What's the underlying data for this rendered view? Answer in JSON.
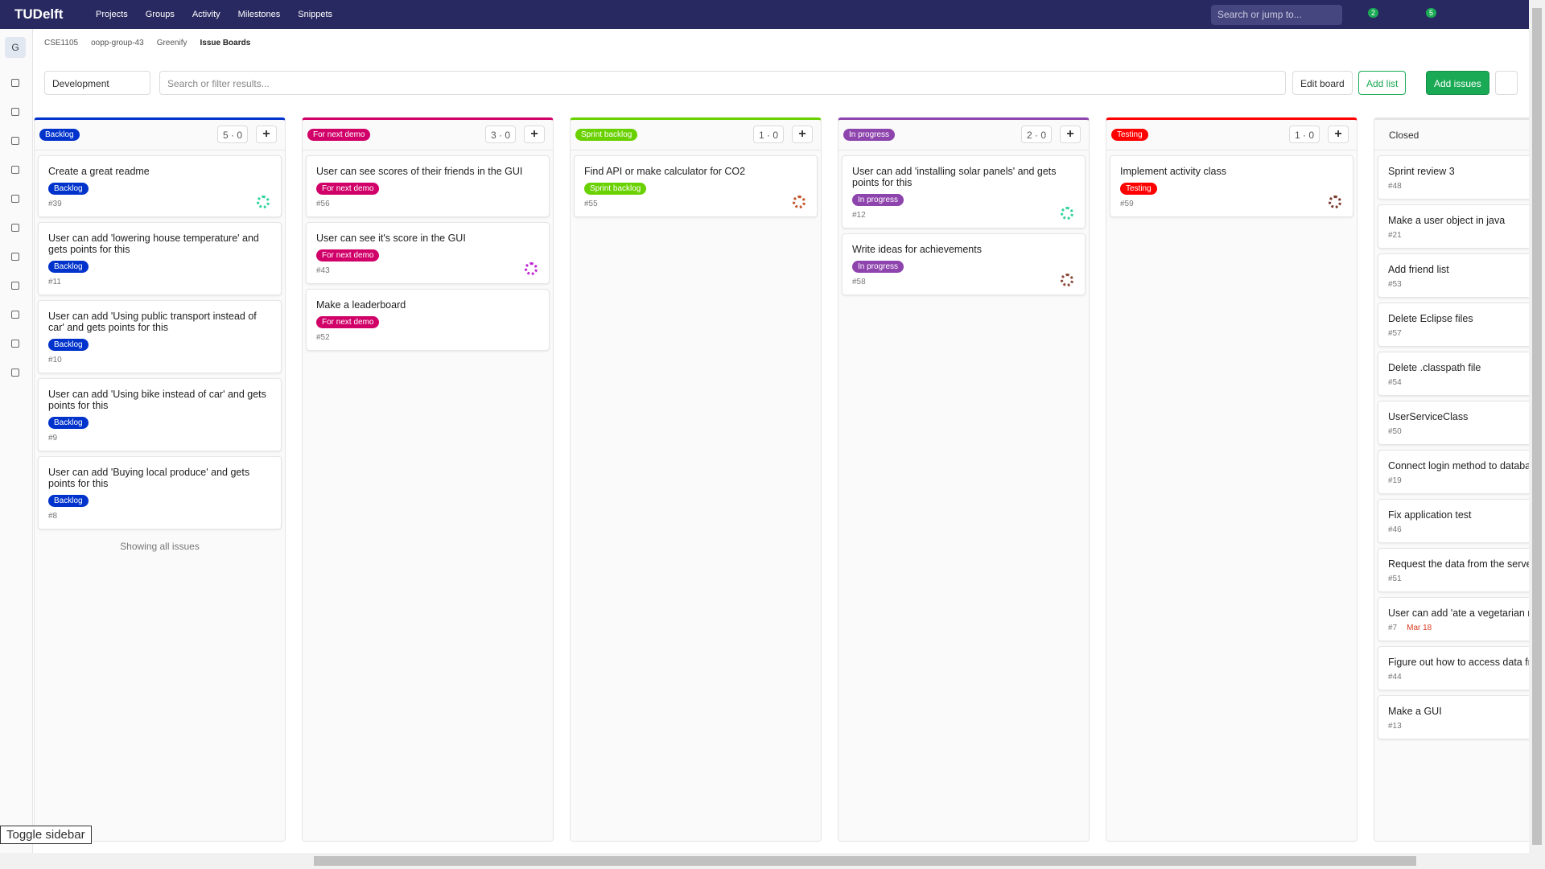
{
  "nav": {
    "logo": "TUDelft",
    "menus": [
      "Projects",
      "Groups",
      "Activity",
      "Milestones",
      "Snippets"
    ],
    "search": "Search or jump to...",
    "badges": [
      "2",
      "5"
    ]
  },
  "sidebar": {
    "project_letter": "G",
    "toggle": "Toggle sidebar"
  },
  "breadcrumbs": [
    "CSE1105",
    "oopp-group-43",
    "Greenify",
    "Issue Boards"
  ],
  "toolbar": {
    "board": "Development",
    "filter": "Search or filter results...",
    "edit_board": "Edit board",
    "add_list": "Add list",
    "add_issues": "Add issues"
  },
  "lists": [
    {
      "label": "Backlog",
      "color": "#0033cc",
      "issues": "5",
      "weight": "0",
      "footer": "Showing all issues",
      "cards": [
        {
          "title": "Create a great readme",
          "number": "#39",
          "avatar": "#32d39a"
        },
        {
          "title": "User can add 'lowering house temperature' and gets points for this",
          "number": "#11"
        },
        {
          "title": "User can add 'Using public transport instead of car' and gets points for this",
          "number": "#10"
        },
        {
          "title": "User can add 'Using bike instead of car' and gets points for this",
          "number": "#9"
        },
        {
          "title": "User can add 'Buying local produce' and gets points for this",
          "number": "#8"
        }
      ]
    },
    {
      "label": "For next demo",
      "color": "#d10069",
      "issues": "3",
      "weight": "0",
      "cards": [
        {
          "title": "User can see scores of their friends in the GUI",
          "number": "#56"
        },
        {
          "title": "User can see it's score in the GUI",
          "number": "#43",
          "avatar": "#c026d3"
        },
        {
          "title": "Make a leaderboard",
          "number": "#52"
        }
      ]
    },
    {
      "label": "Sprint backlog",
      "color": "#69d100",
      "issues": "1",
      "weight": "0",
      "cards": [
        {
          "title": "Find API or make calculator for CO2",
          "number": "#55",
          "avatar": "#c2552b"
        }
      ]
    },
    {
      "label": "In progress",
      "color": "#8e44ad",
      "issues": "2",
      "weight": "0",
      "cards": [
        {
          "title": "User can add 'installing solar panels' and gets points for this",
          "number": "#12",
          "avatar": "#32d39a"
        },
        {
          "title": "Write ideas for achievements",
          "number": "#58",
          "avatar": "#8a4b3b"
        }
      ]
    },
    {
      "label": "Testing",
      "color": "#ff0000",
      "issues": "1",
      "weight": "0",
      "cards": [
        {
          "title": "Implement activity class",
          "number": "#59",
          "avatar": "#7a3a2e"
        }
      ]
    }
  ],
  "closed": {
    "title": "Closed",
    "cards": [
      {
        "title": "Sprint review 3",
        "number": "#48"
      },
      {
        "title": "Make a user object in java",
        "number": "#21"
      },
      {
        "title": "Add friend list",
        "number": "#53"
      },
      {
        "title": "Delete Eclipse files",
        "number": "#57"
      },
      {
        "title": "Delete .classpath file",
        "number": "#54"
      },
      {
        "title": "UserServiceClass",
        "number": "#50"
      },
      {
        "title": "Connect login method to databas",
        "number": "#19"
      },
      {
        "title": "Fix application test",
        "number": "#46"
      },
      {
        "title": "Request the data from the server a the user",
        "number": "#51"
      },
      {
        "title": "User can add 'ate a vegetarian mea points for this",
        "number": "#7",
        "due": "Mar 18"
      },
      {
        "title": "Figure out how to access data fror",
        "number": "#44"
      },
      {
        "title": "Make a GUI",
        "number": "#13"
      }
    ]
  }
}
